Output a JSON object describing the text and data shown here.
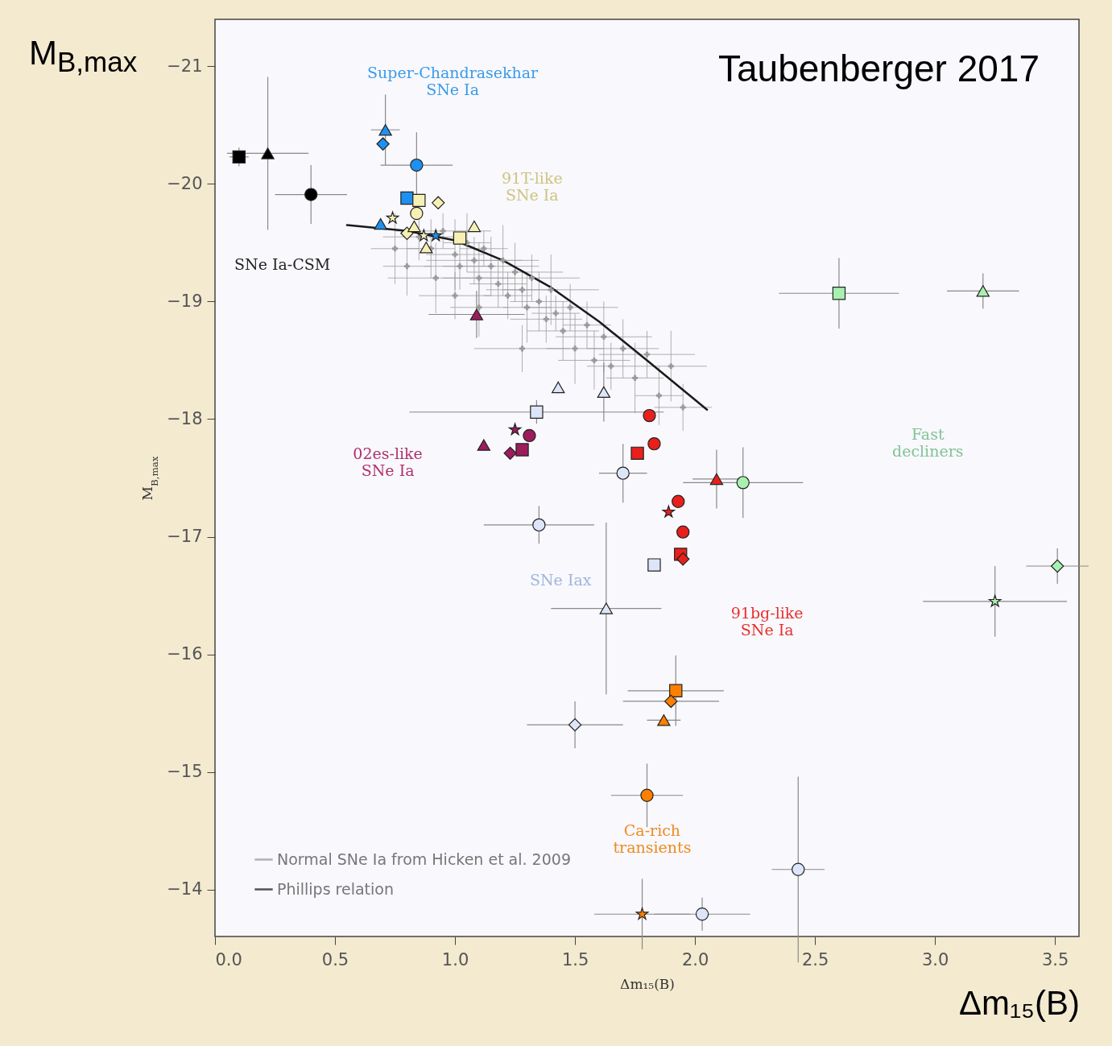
{
  "chart_data": {
    "type": "scatter",
    "title": "Taubenberger 2017",
    "xlabel": "Δm₁₅(B)",
    "ylabel": "M$_{B,max}$",
    "xlim": [
      0,
      3.6
    ],
    "ylim": [
      -13.6,
      -21.4
    ],
    "xticks": [
      {
        "value": 0,
        "label": "0.0"
      },
      0.5,
      {
        "value": 1,
        "label": "1.0"
      },
      1.5,
      {
        "value": 2,
        "label": "2.0"
      },
      2.5,
      {
        "value": 3,
        "label": "3.0"
      },
      3.5
    ],
    "yticks": [
      {
        "value": -21,
        "label": "−21"
      },
      {
        "value": -20,
        "label": "−20"
      },
      {
        "value": -19,
        "label": "−19"
      },
      {
        "value": -18,
        "label": "−18"
      },
      {
        "value": -17,
        "label": "−17"
      },
      {
        "value": -16,
        "label": "−16"
      },
      {
        "value": -15,
        "label": "−15"
      },
      {
        "value": -14,
        "label": "−14"
      }
    ],
    "legend": "bottom left",
    "annotations": [
      "Super-Chandrasekhar\nSNe Ia",
      "91T-like\nSNe Ia",
      "SNe Ia-CSM",
      "02es-like\nSNe Ia",
      "SNe Iax",
      "91bg-like\nSNe Ia",
      "Fast\ndecliners",
      "Ca-rich\ntransients"
    ],
    "series": [
      {
        "name": "Normal SNe Ia from Hicken et al. 2009",
        "color": "#9a9a9a",
        "marker": "cross",
        "x": [
          0.85,
          0.9,
          0.95,
          1.0,
          1.02,
          1.05,
          1.08,
          1.1,
          1.12,
          1.15,
          1.18,
          1.2,
          1.22,
          1.25,
          1.28,
          1.3,
          1.32,
          1.35,
          1.38,
          1.4,
          1.42,
          1.45,
          1.48,
          1.5,
          1.55,
          1.58,
          1.62,
          1.65,
          1.7,
          1.75,
          1.8,
          1.85,
          1.9,
          1.95,
          0.8,
          0.92,
          1.0,
          1.1,
          0.75,
          1.28
        ],
        "values": [
          -19.55,
          -19.45,
          -19.6,
          -19.4,
          -19.3,
          -19.5,
          -19.35,
          -19.2,
          -19.45,
          -19.3,
          -19.15,
          -19.35,
          -19.05,
          -19.25,
          -19.1,
          -18.95,
          -19.2,
          -19.0,
          -18.85,
          -19.1,
          -18.9,
          -18.75,
          -18.95,
          -18.6,
          -18.8,
          -18.5,
          -18.7,
          -18.45,
          -18.6,
          -18.35,
          -18.55,
          -18.2,
          -18.45,
          -18.1,
          -19.3,
          -19.2,
          -19.05,
          -18.95,
          -19.45,
          -18.6
        ],
        "errors": [
          0.2,
          0.25,
          0.15,
          0.3,
          0.2,
          0.25,
          0.2,
          0.3,
          0.15,
          0.25,
          0.2,
          0.3,
          0.2,
          0.25,
          0.15,
          0.3,
          0.2,
          0.25,
          0.2,
          0.3,
          0.15,
          0.25,
          0.2,
          0.3,
          0.2,
          0.25,
          0.3,
          0.2,
          0.25,
          0.3,
          0.2,
          0.25,
          0.3,
          0.2,
          0.25,
          0.3,
          0.2,
          0.25,
          0.3,
          0.2
        ],
        "xerrors": [
          0.15,
          0.1,
          0.2,
          0.12,
          0.15,
          0.1,
          0.2,
          0.15,
          0.1,
          0.2,
          0.12,
          0.15,
          0.1,
          0.2,
          0.15,
          0.1,
          0.2,
          0.12,
          0.15,
          0.2,
          0.1,
          0.15,
          0.2,
          0.12,
          0.1,
          0.15,
          0.2,
          0.1,
          0.15,
          0.12,
          0.2,
          0.1,
          0.15,
          0.12,
          0.1,
          0.2,
          0.15,
          0.12,
          0.1,
          0.2
        ]
      },
      {
        "name": "Phillips relation",
        "type": "line",
        "color": "#1a1a1a",
        "x": [
          0.55,
          0.8,
          1.0,
          1.2,
          1.4,
          1.6,
          1.8,
          2.05
        ],
        "values": [
          -19.65,
          -19.6,
          -19.52,
          -19.35,
          -19.12,
          -18.83,
          -18.5,
          -18.08
        ]
      },
      {
        "color": "#000000",
        "marker": "square",
        "x": [
          0.1
        ],
        "values": [
          -20.23
        ],
        "errors": [
          0.08
        ],
        "xerrors": [
          0.04
        ]
      },
      {
        "color": "#000000",
        "marker": "triangle",
        "x": [
          0.22
        ],
        "values": [
          -20.26
        ],
        "errors": [
          0.65
        ],
        "xerrors": [
          0.17
        ]
      },
      {
        "color": "#000000",
        "marker": "circle",
        "x": [
          0.4
        ],
        "values": [
          -19.91
        ],
        "errors": [
          0.25
        ],
        "xerrors": [
          0.15
        ]
      },
      {
        "color": "#1e90f0",
        "marker": "triangle",
        "x": [
          0.71,
          0.69
        ],
        "values": [
          -20.46,
          -19.66
        ],
        "errors": [
          0.3,
          null
        ],
        "xerrors": [
          0.06,
          null
        ]
      },
      {
        "color": "#1e90f0",
        "marker": "diamond",
        "x": [
          0.7
        ],
        "values": [
          -20.34
        ]
      },
      {
        "color": "#1e90f0",
        "marker": "circle",
        "x": [
          0.84
        ],
        "values": [
          -20.16
        ],
        "errors": [
          0.28
        ],
        "xerrors": [
          0.15
        ]
      },
      {
        "color": "#1e90f0",
        "marker": "square",
        "x": [
          0.8
        ],
        "values": [
          -19.88
        ]
      },
      {
        "color": "#1e90f0",
        "marker": "star",
        "x": [
          0.92
        ],
        "values": [
          -19.56
        ]
      },
      {
        "color": "#f6f0b4",
        "marker": "square",
        "x": [
          0.85,
          1.02
        ],
        "values": [
          -19.86,
          -19.54
        ]
      },
      {
        "color": "#f6f0b4",
        "marker": "diamond",
        "x": [
          0.93,
          0.8
        ],
        "values": [
          -19.84,
          -19.58
        ]
      },
      {
        "color": "#f6f0b4",
        "marker": "circle",
        "x": [
          0.84
        ],
        "values": [
          -19.75
        ]
      },
      {
        "color": "#f6f0b4",
        "marker": "triangle",
        "x": [
          0.83,
          0.88,
          1.08
        ],
        "values": [
          -19.64,
          -19.46,
          -19.64
        ]
      },
      {
        "color": "#f6f0b4",
        "marker": "star",
        "x": [
          0.74,
          0.87
        ],
        "values": [
          -19.71,
          -19.56
        ]
      },
      {
        "color": "#9c1c5c",
        "marker": "triangle",
        "x": [
          1.09,
          1.12
        ],
        "values": [
          -18.89,
          -17.78
        ],
        "errors": [
          0.2,
          null
        ],
        "xerrors": [
          0.2,
          null
        ]
      },
      {
        "color": "#9c1c5c",
        "marker": "star",
        "x": [
          1.25
        ],
        "values": [
          -17.91
        ]
      },
      {
        "color": "#9c1c5c",
        "marker": "circle",
        "x": [
          1.31
        ],
        "values": [
          -17.86
        ]
      },
      {
        "color": "#9c1c5c",
        "marker": "diamond",
        "x": [
          1.23
        ],
        "values": [
          -17.71
        ]
      },
      {
        "color": "#9c1c5c",
        "marker": "square",
        "x": [
          1.28
        ],
        "values": [
          -17.74
        ]
      },
      {
        "color": "#dde6f8",
        "marker": "square",
        "x": [
          1.34,
          1.83
        ],
        "values": [
          -18.06,
          -16.76
        ],
        "errors": [
          0.1,
          null
        ],
        "xerrors": [
          0.53,
          null
        ]
      },
      {
        "color": "#dde6f8",
        "marker": "triangle",
        "x": [
          1.43,
          1.62,
          1.63
        ],
        "values": [
          -18.27,
          -18.23,
          -16.39
        ],
        "errors": [
          0.05,
          0.25,
          0.73
        ],
        "xerrors": [
          null,
          null,
          0.23
        ]
      },
      {
        "color": "#dde6f8",
        "marker": "circle",
        "x": [
          1.7,
          1.35,
          2.43,
          2.03
        ],
        "values": [
          -17.54,
          -17.1,
          -14.17,
          -13.79
        ],
        "errors": [
          0.25,
          0.16,
          0.79,
          0.14
        ],
        "xerrors": [
          0.1,
          0.23,
          0.11,
          0.2
        ]
      },
      {
        "color": "#dde6f8",
        "marker": "diamond",
        "x": [
          1.5
        ],
        "values": [
          -15.4
        ],
        "errors": [
          0.2
        ],
        "xerrors": [
          0.2
        ]
      },
      {
        "color": "#e8201c",
        "marker": "circle",
        "x": [
          1.81,
          1.83,
          1.93,
          1.95
        ],
        "values": [
          -18.03,
          -17.79,
          -17.3,
          -17.04
        ]
      },
      {
        "color": "#e8201c",
        "marker": "square",
        "x": [
          1.76,
          1.94
        ],
        "values": [
          -17.71,
          -16.85
        ]
      },
      {
        "color": "#e8201c",
        "marker": "triangle",
        "x": [
          2.09
        ],
        "values": [
          -17.49
        ],
        "errors": [
          0.25
        ],
        "xerrors": [
          0.1
        ]
      },
      {
        "color": "#e8201c",
        "marker": "star",
        "x": [
          1.89
        ],
        "values": [
          -17.21
        ]
      },
      {
        "color": "#e8201c",
        "marker": "diamond",
        "x": [
          1.95
        ],
        "values": [
          -16.81
        ]
      },
      {
        "color": "#a8f0b0",
        "marker": "square",
        "x": [
          2.6
        ],
        "values": [
          -19.07
        ],
        "errors": [
          0.3
        ],
        "xerrors": [
          0.25
        ]
      },
      {
        "color": "#a8f0b0",
        "marker": "triangle",
        "x": [
          3.2
        ],
        "values": [
          -19.09
        ],
        "errors": [
          0.15
        ],
        "xerrors": [
          0.15
        ]
      },
      {
        "color": "#a8f0b0",
        "marker": "circle",
        "x": [
          2.2
        ],
        "values": [
          -17.46
        ],
        "errors": [
          0.3
        ],
        "xerrors": [
          0.25
        ]
      },
      {
        "color": "#a8f0b0",
        "marker": "diamond",
        "x": [
          3.51
        ],
        "values": [
          -16.75
        ],
        "errors": [
          0.15
        ],
        "xerrors": [
          0.13
        ]
      },
      {
        "color": "#a8f0b0",
        "marker": "star",
        "x": [
          3.25
        ],
        "values": [
          -16.45
        ],
        "errors": [
          0.3
        ],
        "xerrors": [
          0.3
        ]
      },
      {
        "color": "#ff8000",
        "marker": "square",
        "x": [
          1.92
        ],
        "values": [
          -15.69
        ],
        "errors": [
          0.3
        ],
        "xerrors": [
          0.2
        ]
      },
      {
        "color": "#ff8000",
        "marker": "diamond",
        "x": [
          1.9
        ],
        "values": [
          -15.6
        ],
        "xerrors": [
          0.2
        ]
      },
      {
        "color": "#ff8000",
        "marker": "triangle",
        "x": [
          1.87
        ],
        "values": [
          -15.44
        ],
        "xerrors": [
          0.07
        ]
      },
      {
        "color": "#ff8000",
        "marker": "circle",
        "x": [
          1.8
        ],
        "values": [
          -14.8
        ],
        "errors": [
          0.27
        ],
        "xerrors": [
          0.15
        ]
      },
      {
        "color": "#ff8000",
        "marker": "star",
        "x": [
          1.78
        ],
        "values": [
          -13.79
        ],
        "errors": [
          0.3
        ],
        "xerrors": [
          0.2
        ]
      }
    ]
  }
}
